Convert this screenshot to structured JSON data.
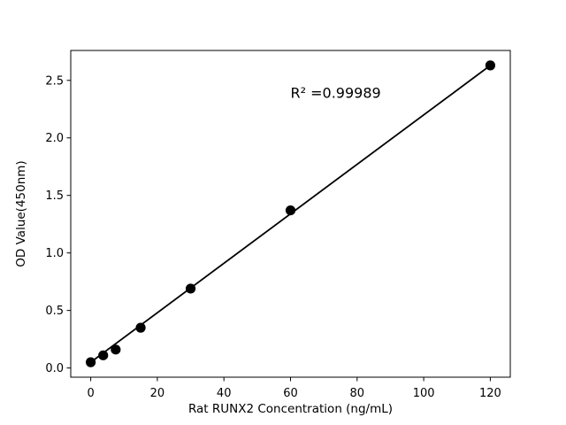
{
  "figure": {
    "background": "#ffffff"
  },
  "chart_data": {
    "type": "scatter",
    "title": "",
    "xlabel": "Rat RUNX2 Concentration (ng/mL)",
    "ylabel": "OD Value(450nm)",
    "annotation": {
      "text": "R² =0.99989",
      "x": 60,
      "y": 2.35
    },
    "x": [
      0,
      3.75,
      7.5,
      15,
      30,
      60,
      120
    ],
    "y": [
      0.05,
      0.11,
      0.16,
      0.35,
      0.69,
      1.37,
      2.63
    ],
    "fit_line": {
      "x1": 0,
      "y1": 0.05,
      "x2": 120,
      "y2": 2.63
    },
    "xticks": [
      "0",
      "20",
      "40",
      "60",
      "80",
      "100",
      "120"
    ],
    "yticks": [
      "0.0",
      "0.5",
      "1.0",
      "1.5",
      "2.0",
      "2.5"
    ],
    "xlim": [
      -6,
      126
    ],
    "ylim": [
      -0.08,
      2.76
    ],
    "grid": false,
    "legend_position": "none",
    "marker_color": "#000000",
    "line_color": "#000000",
    "axis_color": "#000000"
  }
}
